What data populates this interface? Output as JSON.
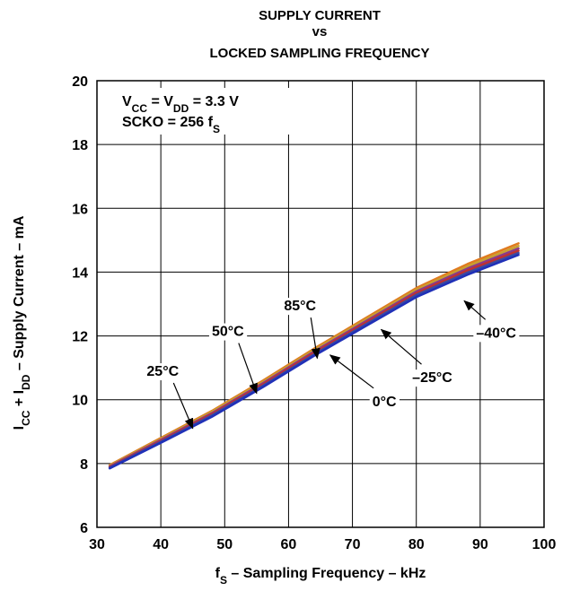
{
  "chart_data": {
    "type": "line",
    "title_lines": [
      "SUPPLY CURRENT",
      "vs",
      "LOCKED SAMPLING FREQUENCY"
    ],
    "xlabel": {
      "main": "f",
      "sub": "S",
      "rest": " – Sampling Frequency – kHz"
    },
    "ylabel": {
      "p1": "I",
      "s1": "CC",
      "p2": " + I",
      "s2": "DD",
      "p3": " – Supply Current – mA"
    },
    "xlim": [
      30,
      100
    ],
    "ylim": [
      6,
      20
    ],
    "xticks": [
      30,
      40,
      50,
      60,
      70,
      80,
      90,
      100
    ],
    "yticks": [
      6,
      8,
      10,
      12,
      14,
      16,
      18,
      20
    ],
    "grid": true,
    "conditions": [
      {
        "p1": "V",
        "s1": "CC",
        "p2": " = V",
        "s2": "DD",
        "p3": " = 3.3 V"
      },
      {
        "p1": "SCKO = 256 f",
        "s1": "S",
        "p2": "",
        "s2": "",
        "p3": ""
      }
    ],
    "x": [
      32,
      40,
      48,
      56,
      64,
      72,
      80,
      88,
      96
    ],
    "series": [
      {
        "name": "85°C",
        "color": "#e07a1f",
        "values": [
          7.95,
          8.8,
          9.65,
          10.6,
          11.6,
          12.55,
          13.5,
          14.25,
          14.9
        ]
      },
      {
        "name": "50°C",
        "color": "#c8a030",
        "values": [
          7.93,
          8.77,
          9.62,
          10.56,
          11.56,
          12.5,
          13.45,
          14.18,
          14.82
        ]
      },
      {
        "name": "25°C",
        "color": "#8a3a8a",
        "values": [
          7.91,
          8.74,
          9.58,
          10.52,
          11.51,
          12.45,
          13.39,
          14.11,
          14.74
        ]
      },
      {
        "name": "0°C",
        "color": "#c03030",
        "values": [
          7.89,
          8.71,
          9.55,
          10.48,
          11.47,
          12.4,
          13.34,
          14.05,
          14.67
        ]
      },
      {
        "name": "–25°C",
        "color": "#3a4aa0",
        "values": [
          7.87,
          8.68,
          9.51,
          10.44,
          11.42,
          12.35,
          13.28,
          13.98,
          14.6
        ]
      },
      {
        "name": "–40°C",
        "color": "#2030b8",
        "values": [
          7.85,
          8.65,
          9.47,
          10.4,
          11.38,
          12.3,
          13.22,
          13.92,
          14.54
        ]
      }
    ],
    "annotations": [
      {
        "text": "25°C",
        "text_at": [
          40.3,
          10.75
        ],
        "arrow_to": [
          45.0,
          9.1
        ]
      },
      {
        "text": "50°C",
        "text_at": [
          50.5,
          12.0
        ],
        "arrow_to": [
          55.0,
          10.2
        ]
      },
      {
        "text": "85°C",
        "text_at": [
          61.8,
          12.8
        ],
        "arrow_to": [
          64.5,
          11.3
        ]
      },
      {
        "text": "0°C",
        "text_at": [
          75.0,
          9.8
        ],
        "arrow_to": [
          66.5,
          11.4
        ]
      },
      {
        "text": "–25°C",
        "text_at": [
          82.5,
          10.55
        ],
        "arrow_to": [
          74.5,
          12.2
        ]
      },
      {
        "text": "–40°C",
        "text_at": [
          92.5,
          11.95
        ],
        "arrow_to": [
          87.5,
          13.1
        ]
      }
    ]
  }
}
